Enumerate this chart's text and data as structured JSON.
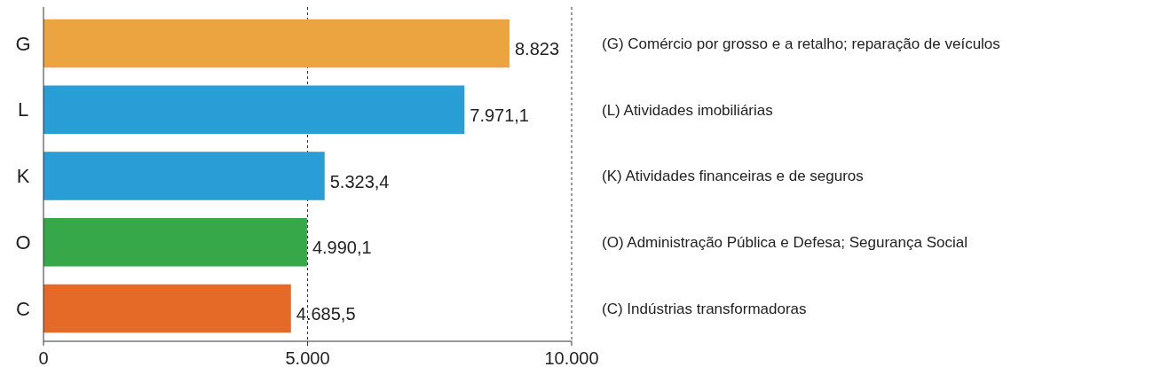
{
  "chart_data": {
    "type": "bar",
    "orientation": "horizontal",
    "categories": [
      "G",
      "L",
      "K",
      "O",
      "C"
    ],
    "values": [
      8823,
      7971.1,
      5323.4,
      4990.1,
      4685.5
    ],
    "colors": [
      "#eca441",
      "#299dd5",
      "#299dd5",
      "#37a84a",
      "#e66a27"
    ],
    "value_labels": [
      "8.823",
      "7.971,1",
      "5.323,4",
      "4.990,1",
      "4.685,5"
    ],
    "xlim": [
      0,
      10000
    ],
    "xticks": [
      {
        "value": 0,
        "label": "0"
      },
      {
        "value": 5000,
        "label": "5.000"
      },
      {
        "value": 10000,
        "label": "10.000"
      }
    ],
    "grid": "x",
    "line_style": "dashed",
    "annotations": [
      "(G) Comércio por grosso e a retalho; reparação de veículos",
      "(L) Atividades imobiliárias",
      "(K) Atividades financeiras e de seguros",
      "(O) Administração Pública e Defesa; Segurança Social",
      "(C) Indústrias transformadoras"
    ]
  }
}
